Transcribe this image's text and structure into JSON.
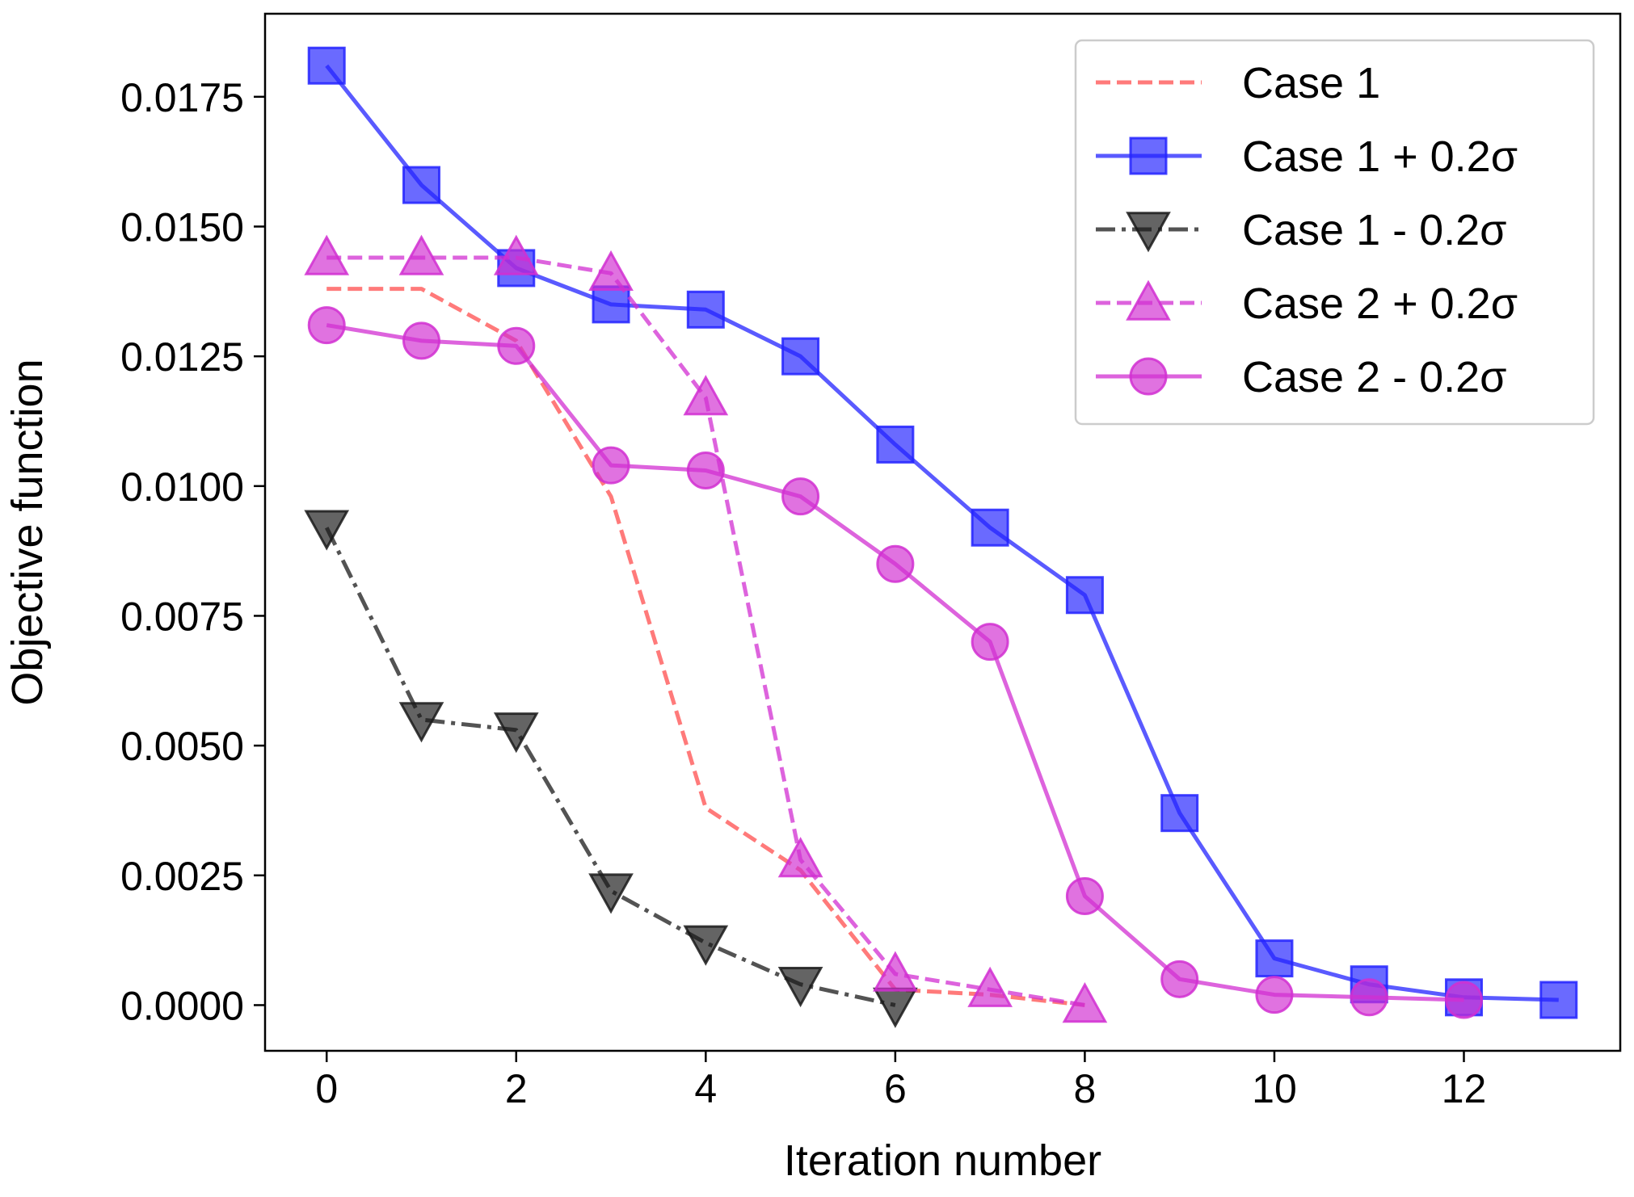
{
  "chart_data": {
    "type": "line",
    "title": "",
    "xlabel": "Iteration number",
    "ylabel": "Objective function",
    "xlim": [
      -0.65,
      13.65
    ],
    "ylim": [
      -0.00088,
      0.0191
    ],
    "xticks": [
      0,
      2,
      4,
      6,
      8,
      10,
      12
    ],
    "xtick_labels": [
      "0",
      "2",
      "4",
      "6",
      "8",
      "10",
      "12"
    ],
    "yticks": [
      0,
      0.0025,
      0.005,
      0.0075,
      0.01,
      0.0125,
      0.015,
      0.0175
    ],
    "ytick_labels": [
      "0.0000",
      "0.0025",
      "0.0050",
      "0.0075",
      "0.0100",
      "0.0125",
      "0.0150",
      "0.0175"
    ],
    "grid": false,
    "legend_position": "top-right",
    "series": [
      {
        "name": "Case 1",
        "color": "#ff4d4d",
        "line_style": "dashed",
        "marker": "none",
        "x": [
          0,
          1,
          2,
          3,
          4,
          5,
          6,
          7,
          8
        ],
        "y": [
          0.0138,
          0.0138,
          0.0128,
          0.0098,
          0.0038,
          0.0026,
          0.0003,
          0.0002,
          0.0
        ]
      },
      {
        "name": "Case 1 + 0.2σ",
        "color": "#2323ff",
        "line_style": "solid",
        "marker": "square",
        "x": [
          0,
          1,
          2,
          3,
          4,
          5,
          6,
          7,
          8,
          9,
          10,
          11,
          12,
          13
        ],
        "y": [
          0.0181,
          0.0158,
          0.0142,
          0.0135,
          0.0134,
          0.0125,
          0.0108,
          0.0092,
          0.0079,
          0.0037,
          0.0009,
          0.0004,
          0.00015,
          0.0001
        ]
      },
      {
        "name": "Case 1 - 0.2σ",
        "color": "#1a1a1a",
        "line_style": "dashdot",
        "marker": "triangle-down",
        "x": [
          0,
          1,
          2,
          3,
          4,
          5,
          6
        ],
        "y": [
          0.0092,
          0.0055,
          0.0053,
          0.0022,
          0.0012,
          0.0004,
          0.0
        ]
      },
      {
        "name": "Case 2 + 0.2σ",
        "color": "#d12fd1",
        "line_style": "dashed",
        "marker": "triangle-up",
        "x": [
          0,
          1,
          2,
          3,
          4,
          5,
          6,
          7,
          8
        ],
        "y": [
          0.0144,
          0.0144,
          0.0144,
          0.0141,
          0.0117,
          0.0028,
          0.0006,
          0.0003,
          0.0
        ]
      },
      {
        "name": "Case 2 - 0.2σ",
        "color": "#d12fd1",
        "line_style": "solid",
        "marker": "circle",
        "x": [
          0,
          1,
          2,
          3,
          4,
          5,
          6,
          7,
          8,
          9,
          10,
          11,
          12
        ],
        "y": [
          0.0131,
          0.0128,
          0.0127,
          0.0104,
          0.0103,
          0.0098,
          0.0085,
          0.007,
          0.0021,
          0.0005,
          0.0002,
          0.00015,
          0.0001
        ]
      }
    ]
  }
}
